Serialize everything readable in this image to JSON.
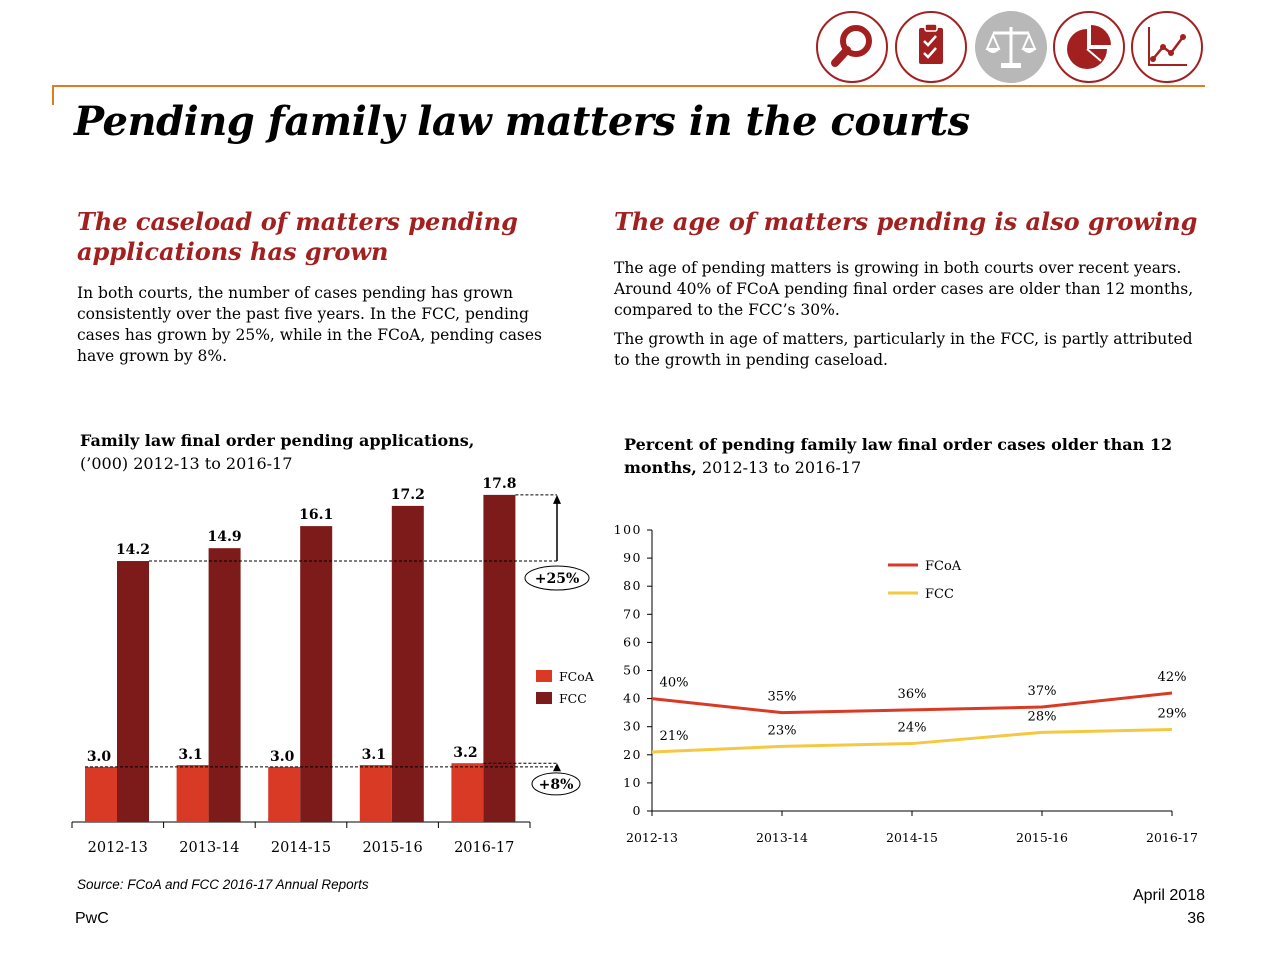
{
  "header": {
    "icons": [
      {
        "name": "magnifier-icon",
        "active": false
      },
      {
        "name": "checklist-icon",
        "active": false
      },
      {
        "name": "scales-icon",
        "active": true
      },
      {
        "name": "pie-chart-icon",
        "active": false
      },
      {
        "name": "line-graph-icon",
        "active": false
      }
    ],
    "accent_color": "#a32020",
    "rule_color": "#e07b1f"
  },
  "title": "Pending family law matters in the courts",
  "left": {
    "heading": "The caseload of matters pending applications has grown",
    "paragraph": "In both courts, the number of cases pending has grown consistently over the past five years. In the FCC, pending cases has grown by 25%, while in the FCoA, pending cases have grown by 8%."
  },
  "right": {
    "heading": "The age of matters pending is also growing",
    "paragraph1": "The age of pending matters is growing in both courts over recent years. Around 40% of FCoA pending final order cases are older than 12 months, compared to the FCC’s 30%.",
    "paragraph2": "The growth in age of matters, particularly in the FCC, is partly attributed to the growth in pending caseload."
  },
  "chart_data": [
    {
      "type": "bar",
      "title_bold": "Family law final order pending applications,",
      "title_rest": "(’000) 2012-13 to 2016-17",
      "categories": [
        "2012-13",
        "2013-14",
        "2014-15",
        "2015-16",
        "2016-17"
      ],
      "series": [
        {
          "name": "FCoA",
          "values": [
            3.0,
            3.1,
            3.0,
            3.1,
            3.2
          ],
          "labels": [
            "3.0",
            "3.1",
            "3.0",
            "3.1",
            "3.2"
          ],
          "color": "#d93a26"
        },
        {
          "name": "FCC",
          "values": [
            14.2,
            14.9,
            16.1,
            17.2,
            17.8
          ],
          "labels": [
            "14.2",
            "14.9",
            "16.1",
            "17.2",
            "17.8"
          ],
          "color": "#7d1b1b"
        }
      ],
      "annotations": [
        {
          "label": "+25%",
          "series": "FCC"
        },
        {
          "label": "+8%",
          "series": "FCoA"
        }
      ],
      "ylim": [
        0,
        18.5
      ],
      "legend": "right"
    },
    {
      "type": "line",
      "title_bold": "Percent of pending family law final order cases older than 12 months,",
      "title_rest": "2012-13 to 2016-17",
      "x": [
        "2012-13",
        "2013-14",
        "2014-15",
        "2015-16",
        "2016-17"
      ],
      "series": [
        {
          "name": "FCoA",
          "values": [
            40,
            35,
            36,
            37,
            42
          ],
          "labels": [
            "40%",
            "35%",
            "36%",
            "37%",
            "42%"
          ],
          "color": "#d93a26"
        },
        {
          "name": "FCC",
          "values": [
            21,
            23,
            24,
            28,
            29
          ],
          "labels": [
            "21%",
            "23%",
            "24%",
            "28%",
            "29%"
          ],
          "color": "#f5c842"
        }
      ],
      "ylim": [
        0,
        100
      ],
      "yticks": [
        "0",
        "10",
        "20",
        "30",
        "40",
        "50",
        "60",
        "70",
        "80",
        "90",
        "100"
      ],
      "legend": "top-center"
    }
  ],
  "source": "Source: FCoA and FCC 2016-17 Annual Reports",
  "footer": {
    "brand": "PwC",
    "date": "April 2018",
    "page": "36"
  }
}
